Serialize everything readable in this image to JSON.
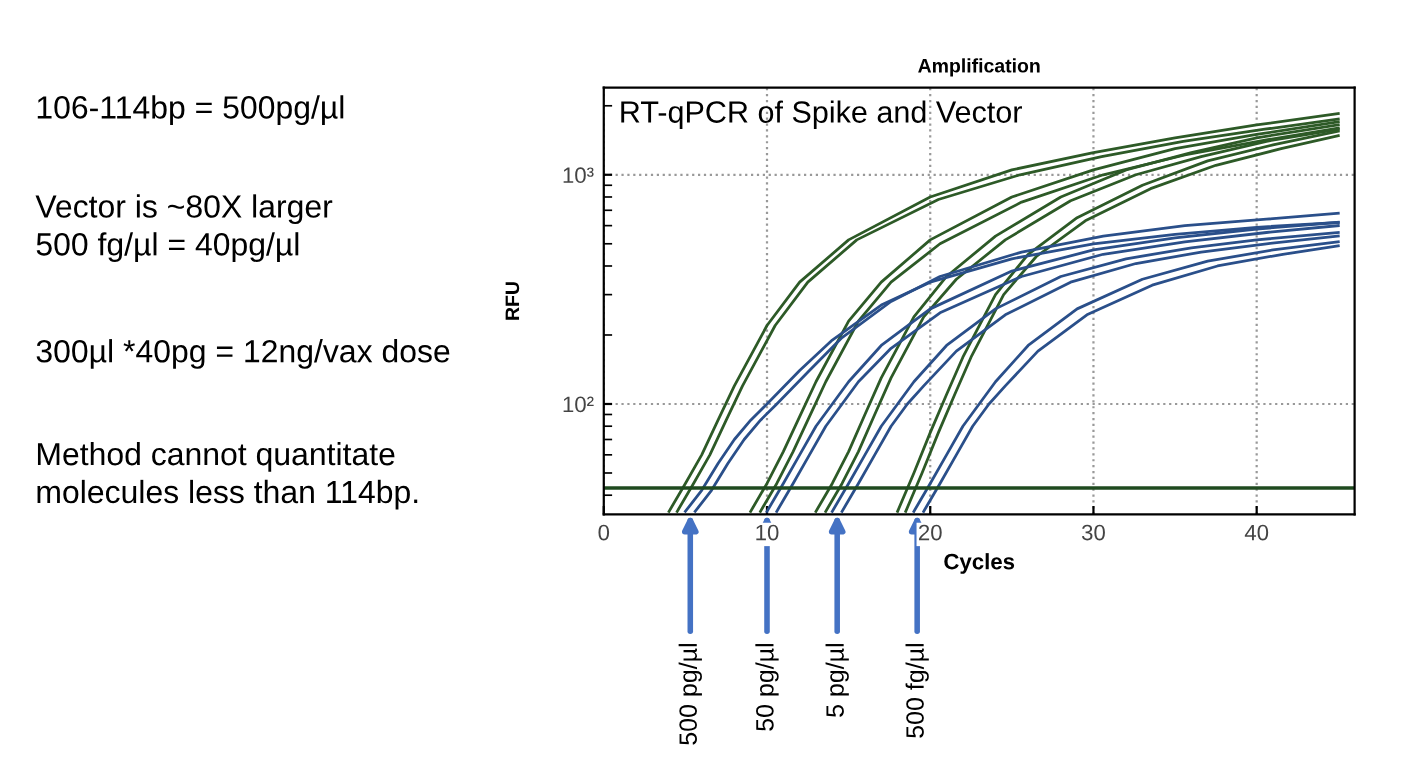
{
  "chart_data": {
    "type": "line",
    "title": "Amplification",
    "subtitle": "RT-qPCR of Spike and Vector",
    "xlabel": "Cycles",
    "ylabel": "RFU",
    "log": "y",
    "grid": true,
    "marker": "none",
    "line_style": "solid",
    "legend": false,
    "xlim": [
      0,
      46
    ],
    "xticks": [
      0,
      10,
      20,
      30,
      40
    ],
    "ylim": [
      33,
      2400
    ],
    "yticks": [
      {
        "value": 100,
        "label": "10²"
      },
      {
        "value": 1000,
        "label": "10³"
      }
    ],
    "ref_lines": [
      {
        "axis": "y",
        "value": 43,
        "color": "#1f4a1f"
      }
    ],
    "series": [
      {
        "color": "#2d5a27",
        "x": [
          4,
          5,
          6,
          7,
          8,
          10,
          12,
          15,
          20,
          25,
          30,
          35,
          40,
          45
        ],
        "values": [
          34,
          45,
          60,
          85,
          120,
          220,
          340,
          520,
          800,
          1050,
          1250,
          1450,
          1650,
          1850
        ]
      },
      {
        "color": "#2d5a27",
        "x": [
          4.5,
          5.5,
          6.5,
          7.5,
          8.5,
          10.5,
          12.5,
          15.5,
          20.5,
          25.5,
          30.5,
          35.5,
          40.5,
          45
        ],
        "values": [
          34,
          45,
          60,
          85,
          120,
          220,
          340,
          520,
          780,
          1000,
          1200,
          1400,
          1580,
          1750
        ]
      },
      {
        "color": "#2d5a27",
        "x": [
          9,
          10,
          11,
          12,
          13,
          15,
          17,
          20,
          25,
          30,
          35,
          40,
          45
        ],
        "values": [
          34,
          45,
          62,
          88,
          125,
          230,
          340,
          520,
          800,
          1050,
          1300,
          1500,
          1700
        ]
      },
      {
        "color": "#2d5a27",
        "x": [
          9.6,
          10.6,
          11.6,
          12.6,
          13.6,
          15.6,
          17.6,
          20.6,
          25.6,
          30.6,
          35.6,
          40.6,
          45
        ],
        "values": [
          34,
          45,
          62,
          88,
          125,
          230,
          340,
          500,
          760,
          1000,
          1220,
          1420,
          1600
        ]
      },
      {
        "color": "#2d5a27",
        "x": [
          13,
          14,
          15,
          16,
          17,
          19,
          21,
          24,
          28,
          32,
          36,
          40,
          45
        ],
        "values": [
          34,
          45,
          62,
          90,
          130,
          240,
          360,
          540,
          800,
          1050,
          1250,
          1450,
          1650
        ]
      },
      {
        "color": "#2d5a27",
        "x": [
          13.6,
          14.6,
          15.6,
          16.6,
          17.6,
          19.6,
          21.6,
          24.6,
          28.6,
          32.6,
          36.6,
          40.6,
          45
        ],
        "values": [
          34,
          45,
          62,
          90,
          130,
          240,
          350,
          520,
          770,
          1000,
          1200,
          1400,
          1580
        ]
      },
      {
        "color": "#2d5a27",
        "x": [
          18,
          19,
          20,
          21,
          22,
          24,
          26,
          29,
          33,
          37,
          41,
          45
        ],
        "values": [
          34,
          50,
          75,
          110,
          160,
          300,
          450,
          650,
          900,
          1150,
          1350,
          1550
        ]
      },
      {
        "color": "#2d5a27",
        "x": [
          18.5,
          19.5,
          20.5,
          21.5,
          22.5,
          24.5,
          26.5,
          29.5,
          33.5,
          37.5,
          41.5,
          45
        ],
        "values": [
          34,
          50,
          75,
          110,
          160,
          300,
          440,
          630,
          870,
          1100,
          1300,
          1480
        ]
      },
      {
        "color": "#2a4f8a",
        "x": [
          5,
          6,
          7,
          8,
          9,
          10,
          12,
          14,
          17,
          20,
          25,
          30,
          35,
          40,
          45
        ],
        "values": [
          34,
          42,
          55,
          70,
          85,
          100,
          140,
          190,
          270,
          340,
          430,
          500,
          550,
          590,
          620
        ]
      },
      {
        "color": "#2a4f8a",
        "x": [
          5.6,
          6.6,
          7.6,
          8.6,
          9.6,
          10.6,
          12.6,
          14.6,
          17.6,
          20.6,
          25.6,
          30.6,
          35.6,
          40.6,
          45
        ],
        "values": [
          34,
          42,
          55,
          70,
          85,
          100,
          140,
          195,
          280,
          360,
          460,
          540,
          600,
          640,
          680
        ]
      },
      {
        "color": "#2a4f8a",
        "x": [
          10,
          11,
          12,
          13,
          14,
          15,
          17,
          20,
          25,
          30,
          35,
          40,
          45
        ],
        "values": [
          34,
          45,
          60,
          80,
          100,
          125,
          180,
          260,
          380,
          470,
          530,
          580,
          620
        ]
      },
      {
        "color": "#2a4f8a",
        "x": [
          10.6,
          11.6,
          12.6,
          13.6,
          14.6,
          15.6,
          17.6,
          20.6,
          25.6,
          30.6,
          35.6,
          40.6,
          45
        ],
        "values": [
          34,
          45,
          60,
          80,
          100,
          125,
          175,
          250,
          360,
          450,
          510,
          560,
          600
        ]
      },
      {
        "color": "#2a4f8a",
        "x": [
          14,
          15,
          16,
          17,
          18,
          19,
          21,
          24,
          28,
          32,
          36,
          40,
          45
        ],
        "values": [
          34,
          45,
          60,
          80,
          100,
          125,
          180,
          260,
          360,
          430,
          480,
          520,
          560
        ]
      },
      {
        "color": "#2a4f8a",
        "x": [
          14.6,
          15.6,
          16.6,
          17.6,
          18.6,
          19.6,
          21.6,
          24.6,
          28.6,
          32.6,
          36.6,
          40.6,
          45
        ],
        "values": [
          34,
          45,
          60,
          80,
          100,
          120,
          170,
          245,
          340,
          410,
          460,
          500,
          540
        ]
      },
      {
        "color": "#2a4f8a",
        "x": [
          19,
          20,
          21,
          22,
          23,
          24,
          26,
          29,
          33,
          37,
          41,
          45
        ],
        "values": [
          34,
          45,
          60,
          80,
          100,
          125,
          180,
          260,
          350,
          420,
          470,
          510
        ]
      },
      {
        "color": "#2a4f8a",
        "x": [
          19.6,
          20.6,
          21.6,
          22.6,
          23.6,
          24.6,
          26.6,
          29.6,
          33.6,
          37.6,
          41.6,
          45
        ],
        "values": [
          34,
          45,
          60,
          80,
          100,
          120,
          170,
          245,
          330,
          400,
          450,
          490
        ]
      }
    ],
    "annotations": [
      "106-114bp = 500pg/µl",
      "Vector is ~80X larger\n500 fg/µl = 40pg/µl",
      "300µl *40pg = 12ng/vax dose",
      "Method cannot quantitate\nmolecules less than 114bp.",
      {
        "text": "500 pg/µl",
        "x": 5.3,
        "y": 33
      },
      {
        "text": "50 pg/µl",
        "x": 10,
        "y": 33
      },
      {
        "text": "5 pg/µl",
        "x": 14.3,
        "y": 33
      },
      {
        "text": "500 fg/µl",
        "x": 19.2,
        "y": 33
      }
    ]
  }
}
